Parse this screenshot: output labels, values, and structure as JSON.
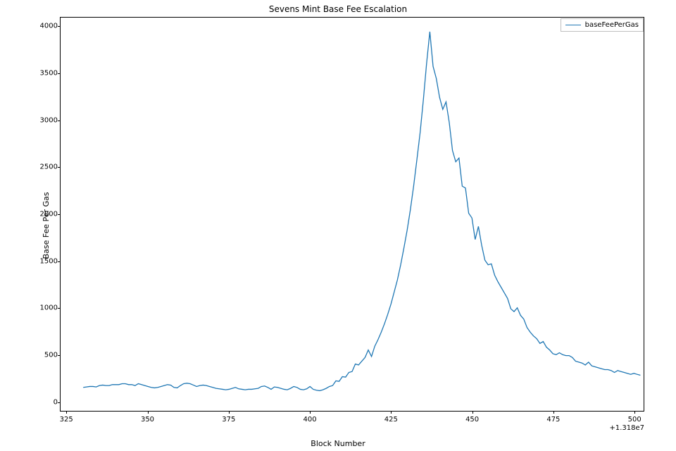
{
  "chart": {
    "type": "line",
    "title": "Sevens Mint Base Fee Escalation",
    "title_fontsize": 12,
    "xlabel": "Block Number",
    "ylabel": "Base Fee Per Gas",
    "label_fontsize": 11,
    "tick_fontsize": 10,
    "x_offset_text": "+1.318e7",
    "background_color": "#ffffff",
    "border_color": "#000000",
    "grid": false,
    "legend": {
      "position": "upper-right",
      "items": [
        {
          "label": "baseFeePerGas",
          "color": "#1f77b4"
        }
      ],
      "border_color": "#bfbfbf"
    },
    "xlim": [
      323,
      503
    ],
    "ylim": [
      -100,
      4100
    ],
    "xticks": [
      325,
      350,
      375,
      400,
      425,
      450,
      475,
      500
    ],
    "yticks": [
      0,
      500,
      1000,
      1500,
      2000,
      2500,
      3000,
      3500,
      4000
    ],
    "line_color": "#1f77b4",
    "line_width": 1.3,
    "series": {
      "x": [
        330,
        331,
        332,
        333,
        334,
        335,
        336,
        337,
        338,
        339,
        340,
        341,
        342,
        343,
        344,
        345,
        346,
        347,
        348,
        349,
        350,
        351,
        352,
        353,
        354,
        355,
        356,
        357,
        358,
        359,
        360,
        361,
        362,
        363,
        364,
        365,
        366,
        367,
        368,
        369,
        370,
        371,
        372,
        373,
        374,
        375,
        376,
        377,
        378,
        379,
        380,
        381,
        382,
        383,
        384,
        385,
        386,
        387,
        388,
        389,
        390,
        391,
        392,
        393,
        394,
        395,
        396,
        397,
        398,
        399,
        400,
        401,
        402,
        403,
        404,
        405,
        406,
        407,
        408,
        409,
        410,
        411,
        412,
        413,
        414,
        415,
        416,
        417,
        418,
        419,
        420,
        421,
        422,
        423,
        424,
        425,
        426,
        427,
        428,
        429,
        430,
        431,
        432,
        433,
        434,
        435,
        436,
        437,
        438,
        439,
        440,
        441,
        442,
        443,
        444,
        445,
        446,
        447,
        448,
        449,
        450,
        451,
        452,
        453,
        454,
        455,
        456,
        457,
        458,
        459,
        460,
        461,
        462,
        463,
        464,
        465,
        466,
        467,
        468,
        469,
        470,
        471,
        472,
        473,
        474,
        475,
        476,
        477,
        478,
        479,
        480,
        481,
        482,
        483,
        484,
        485,
        486,
        487,
        488,
        489,
        490,
        491,
        492,
        493,
        494,
        495,
        496,
        497,
        498,
        499,
        500,
        501,
        502
      ],
      "y": [
        150,
        155,
        160,
        160,
        155,
        170,
        175,
        170,
        170,
        180,
        180,
        180,
        190,
        190,
        180,
        180,
        170,
        190,
        180,
        170,
        160,
        150,
        145,
        150,
        160,
        170,
        180,
        175,
        150,
        145,
        170,
        190,
        195,
        190,
        175,
        160,
        170,
        175,
        170,
        160,
        150,
        140,
        135,
        130,
        125,
        130,
        140,
        150,
        135,
        130,
        125,
        130,
        130,
        135,
        140,
        160,
        165,
        150,
        130,
        155,
        150,
        140,
        130,
        125,
        140,
        160,
        150,
        130,
        125,
        135,
        160,
        130,
        120,
        115,
        125,
        140,
        160,
        170,
        220,
        215,
        265,
        260,
        310,
        320,
        400,
        390,
        430,
        470,
        550,
        480,
        590,
        660,
        740,
        830,
        930,
        1040,
        1170,
        1300,
        1460,
        1640,
        1830,
        2050,
        2300,
        2580,
        2870,
        3220,
        3610,
        3950,
        3580,
        3450,
        3250,
        3120,
        3200,
        2980,
        2680,
        2560,
        2600,
        2300,
        2280,
        2010,
        1960,
        1730,
        1870,
        1670,
        1510,
        1460,
        1470,
        1350,
        1280,
        1220,
        1160,
        1100,
        990,
        960,
        1000,
        920,
        880,
        790,
        740,
        700,
        670,
        620,
        640,
        580,
        550,
        510,
        500,
        520,
        500,
        490,
        490,
        470,
        430,
        420,
        410,
        390,
        420,
        380,
        370,
        360,
        350,
        340,
        340,
        330,
        310,
        330,
        320,
        310,
        300,
        290,
        300,
        290,
        280
      ]
    }
  }
}
